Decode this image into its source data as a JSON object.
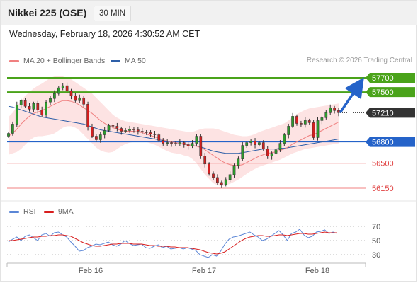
{
  "header": {
    "title": "Nikkei 225 (OSE)",
    "period": "30 MIN"
  },
  "datetime": "Wednesday, February 18, 2026 4:30:52 AM CET",
  "credit": "Research © 2026 Trading Central",
  "legend_main": [
    {
      "label": "MA 20 + Bollinger Bands",
      "color": "#f08080"
    },
    {
      "label": "MA 50",
      "color": "#2e5fa8"
    }
  ],
  "legend_rsi": [
    {
      "label": "RSI",
      "color": "#5b86d6"
    },
    {
      "label": "9MA",
      "color": "#d81e1e"
    }
  ],
  "colors": {
    "up": "#2c9b2c",
    "down": "#d21f1f",
    "resistance": "#4aa31a",
    "pivot": "#2563c9",
    "support": "#f08080",
    "last": "#333333",
    "band_fill": "#fde3e3"
  },
  "chart_data": [
    {
      "type": "candlestick",
      "instrument": "Nikkei 225 (OSE)",
      "interval": "30 MIN",
      "x_ticks": [
        "Feb 16",
        "Feb 17",
        "Feb 18"
      ],
      "ylim": [
        56050,
        57800
      ],
      "last_price": 57210,
      "forecast_arrow": {
        "from": 57210,
        "to": 57700
      },
      "levels": [
        {
          "value": 57700,
          "label": "57700",
          "role": "resistance",
          "style": "tag"
        },
        {
          "value": 57500,
          "label": "57500",
          "role": "resistance",
          "style": "tag"
        },
        {
          "value": 57210,
          "label": "57210",
          "role": "last",
          "style": "tag"
        },
        {
          "value": 56800,
          "label": "56800",
          "role": "pivot",
          "style": "tag"
        },
        {
          "value": 56500,
          "label": "56500",
          "role": "support",
          "style": "text"
        },
        {
          "value": 56150,
          "label": "56150",
          "role": "support",
          "style": "text"
        }
      ],
      "close": [
        56920,
        57050,
        57320,
        57380,
        57300,
        57260,
        57340,
        57250,
        57180,
        57360,
        57410,
        57480,
        57560,
        57590,
        57520,
        57450,
        57380,
        57420,
        57330,
        57010,
        56880,
        56830,
        56900,
        56960,
        57030,
        57020,
        56990,
        56950,
        56960,
        56980,
        56970,
        56950,
        56940,
        56930,
        56910,
        56900,
        56820,
        56780,
        56790,
        56780,
        56770,
        56790,
        56760,
        56740,
        56780,
        56880,
        56600,
        56490,
        56350,
        56300,
        56230,
        56200,
        56270,
        56340,
        56470,
        56560,
        56750,
        56790,
        56810,
        56760,
        56790,
        56700,
        56600,
        56640,
        56690,
        56780,
        56900,
        57020,
        57160,
        57060,
        57050,
        57100,
        57070,
        56860,
        57100,
        57140,
        57210,
        57280,
        57240,
        57210
      ],
      "ma20": [
        56880,
        56920,
        56980,
        57050,
        57110,
        57160,
        57200,
        57220,
        57240,
        57270,
        57300,
        57330,
        57360,
        57380,
        57380,
        57370,
        57350,
        57320,
        57280,
        57240,
        57200,
        57150,
        57100,
        57060,
        57030,
        57000,
        56980,
        56960,
        56950,
        56950,
        56950,
        56940,
        56930,
        56910,
        56890,
        56870,
        56850,
        56830,
        56810,
        56800,
        56790,
        56780,
        56770,
        56760,
        56750,
        56740,
        56720,
        56690,
        56650,
        56610,
        56570,
        56530,
        56500,
        56480,
        56470,
        56470,
        56480,
        56510,
        56540,
        56570,
        56600,
        56620,
        56640,
        56650,
        56660,
        56680,
        56700,
        56730,
        56770,
        56800,
        56830,
        56860,
        56890,
        56900,
        56930,
        56960,
        56990,
        57020,
        57050,
        57080
      ],
      "bb_upper": [
        57150,
        57210,
        57290,
        57380,
        57450,
        57500,
        57550,
        57590,
        57620,
        57660,
        57700,
        57720,
        57730,
        57720,
        57700,
        57680,
        57640,
        57600,
        57560,
        57520,
        57480,
        57420,
        57360,
        57300,
        57240,
        57180,
        57140,
        57110,
        57090,
        57080,
        57070,
        57060,
        57050,
        57040,
        57030,
        57020,
        57010,
        57000,
        56990,
        56980,
        56970,
        56960,
        56950,
        56940,
        56940,
        56960,
        56980,
        56990,
        56990,
        56990,
        56980,
        56960,
        56940,
        56920,
        56900,
        56890,
        56880,
        56880,
        56890,
        56910,
        56940,
        56960,
        56980,
        57000,
        57020,
        57040,
        57060,
        57100,
        57150,
        57190,
        57220,
        57250,
        57270,
        57280,
        57290,
        57300,
        57310,
        57320,
        57330,
        57340
      ],
      "bb_lower": [
        56620,
        56640,
        56660,
        56700,
        56760,
        56820,
        56860,
        56880,
        56880,
        56890,
        56900,
        56920,
        56960,
        57000,
        57020,
        57020,
        57000,
        56960,
        56900,
        56840,
        56780,
        56720,
        56680,
        56660,
        56650,
        56660,
        56700,
        56740,
        56770,
        56790,
        56800,
        56810,
        56810,
        56800,
        56780,
        56760,
        56730,
        56700,
        56670,
        56650,
        56640,
        56630,
        56610,
        56600,
        56560,
        56500,
        56420,
        56340,
        56280,
        56220,
        56190,
        56180,
        56190,
        56210,
        56240,
        56270,
        56310,
        56350,
        56390,
        56420,
        56450,
        56470,
        56490,
        56510,
        56530,
        56550,
        56580,
        56610,
        56640,
        56660,
        56680,
        56700,
        56710,
        56720,
        56730,
        56740,
        56750,
        56760,
        56770,
        56780
      ],
      "ma50": [
        57300,
        57290,
        57270,
        57250,
        57230,
        57210,
        57190,
        57170,
        57150,
        57140,
        57130,
        57120,
        57110,
        57100,
        57090,
        57080,
        57070,
        57060,
        57050,
        57030,
        57010,
        56990,
        56970,
        56960,
        56950,
        56940,
        56930,
        56920,
        56910,
        56900,
        56890,
        56880,
        56870,
        56860,
        56850,
        56840,
        56830,
        56820,
        56810,
        56800,
        56790,
        56780,
        56770,
        56760,
        56750,
        56740,
        56730,
        56710,
        56690,
        56670,
        56660,
        56650,
        56640,
        56640,
        56640,
        56640,
        56650,
        56660,
        56670,
        56680,
        56690,
        56700,
        56700,
        56700,
        56700,
        56710,
        56710,
        56720,
        56730,
        56740,
        56750,
        56760,
        56770,
        56780,
        56790,
        56800,
        56810,
        56820,
        56830,
        56840
      ]
    },
    {
      "type": "line",
      "name": "RSI panel",
      "ylim": [
        20,
        78
      ],
      "y_ticks": [
        70,
        50,
        30
      ],
      "series": [
        {
          "name": "RSI",
          "color": "#5b86d6",
          "values": [
            48,
            52,
            55,
            50,
            56,
            58,
            54,
            50,
            58,
            60,
            56,
            61,
            62,
            58,
            55,
            48,
            42,
            35,
            36,
            40,
            42,
            45,
            44,
            46,
            48,
            44,
            42,
            45,
            50,
            46,
            43,
            44,
            45,
            40,
            39,
            42,
            44,
            40,
            42,
            38,
            39,
            40,
            38,
            40,
            38,
            36,
            30,
            28,
            26,
            30,
            28,
            35,
            45,
            52,
            55,
            56,
            58,
            60,
            62,
            58,
            55,
            50,
            52,
            56,
            60,
            64,
            58,
            50,
            60,
            62,
            66,
            58,
            54,
            56,
            62,
            63,
            65,
            60,
            62,
            60
          ]
        },
        {
          "name": "9MA",
          "color": "#d81e1e",
          "values": [
            50,
            50,
            51,
            52,
            53,
            54,
            55,
            55,
            56,
            56,
            57,
            57,
            58,
            58,
            57,
            56,
            53,
            50,
            47,
            45,
            43,
            42,
            42,
            43,
            44,
            45,
            45,
            46,
            46,
            46,
            45,
            45,
            45,
            44,
            43,
            43,
            42,
            42,
            42,
            41,
            41,
            40,
            40,
            40,
            39,
            38,
            37,
            35,
            33,
            32,
            31,
            32,
            34,
            38,
            42,
            46,
            50,
            53,
            55,
            56,
            57,
            57,
            56,
            56,
            57,
            58,
            58,
            57,
            58,
            59,
            60,
            60,
            59,
            59,
            60,
            61,
            62,
            61,
            61,
            61
          ]
        }
      ]
    }
  ]
}
